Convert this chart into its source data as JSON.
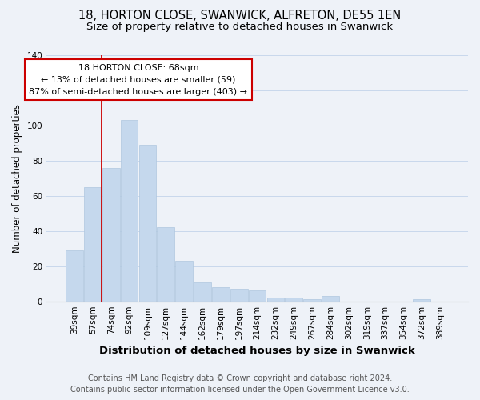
{
  "title": "18, HORTON CLOSE, SWANWICK, ALFRETON, DE55 1EN",
  "subtitle": "Size of property relative to detached houses in Swanwick",
  "xlabel": "Distribution of detached houses by size in Swanwick",
  "ylabel": "Number of detached properties",
  "categories": [
    "39sqm",
    "57sqm",
    "74sqm",
    "92sqm",
    "109sqm",
    "127sqm",
    "144sqm",
    "162sqm",
    "179sqm",
    "197sqm",
    "214sqm",
    "232sqm",
    "249sqm",
    "267sqm",
    "284sqm",
    "302sqm",
    "319sqm",
    "337sqm",
    "354sqm",
    "372sqm",
    "389sqm"
  ],
  "values": [
    29,
    65,
    76,
    103,
    89,
    42,
    23,
    11,
    8,
    7,
    6,
    2,
    2,
    1,
    3,
    0,
    0,
    0,
    0,
    1,
    0
  ],
  "bar_color": "#c5d8ed",
  "bar_edge_color": "#aec6de",
  "vline_x": 1.5,
  "annotation_title": "18 HORTON CLOSE: 68sqm",
  "annotation_line1": "← 13% of detached houses are smaller (59)",
  "annotation_line2": "87% of semi-detached houses are larger (403) →",
  "annotation_box_facecolor": "#ffffff",
  "annotation_box_edgecolor": "#cc0000",
  "vline_color": "#cc0000",
  "ylim": [
    0,
    140
  ],
  "yticks": [
    0,
    20,
    40,
    60,
    80,
    100,
    120,
    140
  ],
  "grid_color": "#c8d8ec",
  "background_color": "#eef2f8",
  "fig_background_color": "#eef2f8",
  "footer_line1": "Contains HM Land Registry data © Crown copyright and database right 2024.",
  "footer_line2": "Contains public sector information licensed under the Open Government Licence v3.0.",
  "title_fontsize": 10.5,
  "subtitle_fontsize": 9.5,
  "xlabel_fontsize": 9.5,
  "ylabel_fontsize": 8.5,
  "tick_fontsize": 7.5,
  "footer_fontsize": 7,
  "annotation_fontsize": 8
}
